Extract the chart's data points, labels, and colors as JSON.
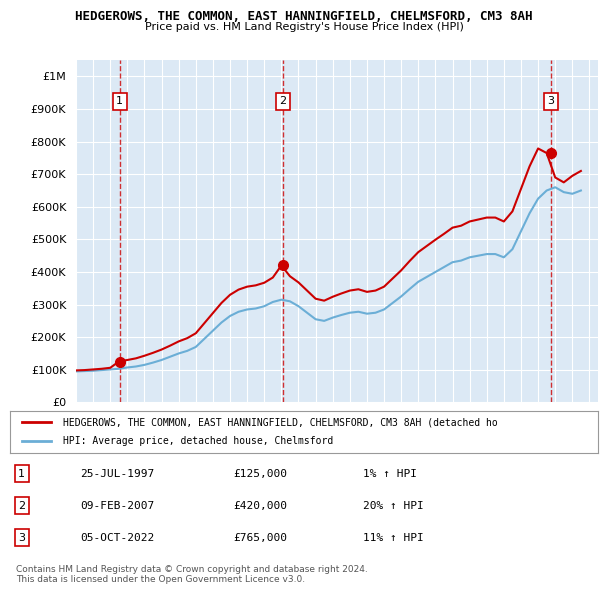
{
  "title": "HEDGEROWS, THE COMMON, EAST HANNINGFIELD, CHELMSFORD, CM3 8AH",
  "subtitle": "Price paid vs. HM Land Registry's House Price Index (HPI)",
  "ylabel_ticks": [
    "£0",
    "£100K",
    "£200K",
    "£300K",
    "£400K",
    "£500K",
    "£600K",
    "£700K",
    "£800K",
    "£900K",
    "£1M"
  ],
  "ytick_values": [
    0,
    100000,
    200000,
    300000,
    400000,
    500000,
    600000,
    700000,
    800000,
    900000,
    1000000
  ],
  "ylim": [
    0,
    1050000
  ],
  "xlim_start": 1995.0,
  "xlim_end": 2025.5,
  "background_color": "#dce9f5",
  "plot_background": "#dce9f5",
  "grid_color": "#ffffff",
  "sale_color": "#cc0000",
  "hpi_color": "#6baed6",
  "dashed_line_color": "#cc0000",
  "transactions": [
    {
      "year": 1997.56,
      "price": 125000,
      "label": "1"
    },
    {
      "year": 2007.1,
      "price": 420000,
      "label": "2"
    },
    {
      "year": 2022.75,
      "price": 765000,
      "label": "3"
    }
  ],
  "legend_entries": [
    "HEDGEROWS, THE COMMON, EAST HANNINGFIELD, CHELMSFORD, CM3 8AH (detached ho",
    "HPI: Average price, detached house, Chelmsford"
  ],
  "table_rows": [
    {
      "num": "1",
      "date": "25-JUL-1997",
      "price": "£125,000",
      "hpi": "1% ↑ HPI"
    },
    {
      "num": "2",
      "date": "09-FEB-2007",
      "price": "£420,000",
      "hpi": "20% ↑ HPI"
    },
    {
      "num": "3",
      "date": "05-OCT-2022",
      "price": "£765,000",
      "hpi": "11% ↑ HPI"
    }
  ],
  "footer": "Contains HM Land Registry data © Crown copyright and database right 2024.\nThis data is licensed under the Open Government Licence v3.0.",
  "hpi_data": {
    "years": [
      1995.0,
      1995.5,
      1996.0,
      1996.5,
      1997.0,
      1997.5,
      1998.0,
      1998.5,
      1999.0,
      1999.5,
      2000.0,
      2000.5,
      2001.0,
      2001.5,
      2002.0,
      2002.5,
      2003.0,
      2003.5,
      2004.0,
      2004.5,
      2005.0,
      2005.5,
      2006.0,
      2006.5,
      2007.0,
      2007.5,
      2008.0,
      2008.5,
      2009.0,
      2009.5,
      2010.0,
      2010.5,
      2011.0,
      2011.5,
      2012.0,
      2012.5,
      2013.0,
      2013.5,
      2014.0,
      2014.5,
      2015.0,
      2015.5,
      2016.0,
      2016.5,
      2017.0,
      2017.5,
      2018.0,
      2018.5,
      2019.0,
      2019.5,
      2020.0,
      2020.5,
      2021.0,
      2021.5,
      2022.0,
      2022.5,
      2023.0,
      2023.5,
      2024.0,
      2024.5
    ],
    "values": [
      95000,
      96000,
      97000,
      99000,
      101000,
      103000,
      107000,
      110000,
      115000,
      122000,
      130000,
      140000,
      150000,
      158000,
      170000,
      195000,
      220000,
      245000,
      265000,
      278000,
      285000,
      288000,
      295000,
      308000,
      315000,
      310000,
      295000,
      275000,
      255000,
      250000,
      260000,
      268000,
      275000,
      278000,
      272000,
      275000,
      285000,
      305000,
      325000,
      348000,
      370000,
      385000,
      400000,
      415000,
      430000,
      435000,
      445000,
      450000,
      455000,
      455000,
      445000,
      470000,
      525000,
      580000,
      625000,
      650000,
      660000,
      645000,
      640000,
      650000
    ]
  },
  "sale_line_data": {
    "years": [
      1995.0,
      1995.5,
      1996.0,
      1996.5,
      1997.0,
      1997.5,
      1998.0,
      1998.5,
      1999.0,
      1999.5,
      2000.0,
      2000.5,
      2001.0,
      2001.5,
      2002.0,
      2002.5,
      2003.0,
      2003.5,
      2004.0,
      2004.5,
      2005.0,
      2005.5,
      2006.0,
      2006.5,
      2007.0,
      2007.5,
      2008.0,
      2008.5,
      2009.0,
      2009.5,
      2010.0,
      2010.5,
      2011.0,
      2011.5,
      2012.0,
      2012.5,
      2013.0,
      2013.5,
      2014.0,
      2014.5,
      2015.0,
      2015.5,
      2016.0,
      2016.5,
      2017.0,
      2017.5,
      2018.0,
      2018.5,
      2019.0,
      2019.5,
      2020.0,
      2020.5,
      2021.0,
      2021.5,
      2022.0,
      2022.5,
      2023.0,
      2023.5,
      2024.0,
      2024.5
    ],
    "values": [
      98000,
      99000,
      101000,
      103000,
      106000,
      125000,
      130000,
      135000,
      143000,
      152000,
      162000,
      174000,
      187000,
      197000,
      212000,
      243000,
      274000,
      305000,
      330000,
      346000,
      355000,
      359000,
      367000,
      383000,
      420000,
      387000,
      368000,
      343000,
      318000,
      312000,
      324000,
      334000,
      343000,
      347000,
      339000,
      343000,
      355000,
      380000,
      405000,
      434000,
      461000,
      480000,
      499000,
      517000,
      536000,
      542000,
      555000,
      561000,
      567000,
      567000,
      555000,
      586000,
      655000,
      724000,
      779000,
      765000,
      690000,
      675000,
      695000,
      710000
    ]
  }
}
